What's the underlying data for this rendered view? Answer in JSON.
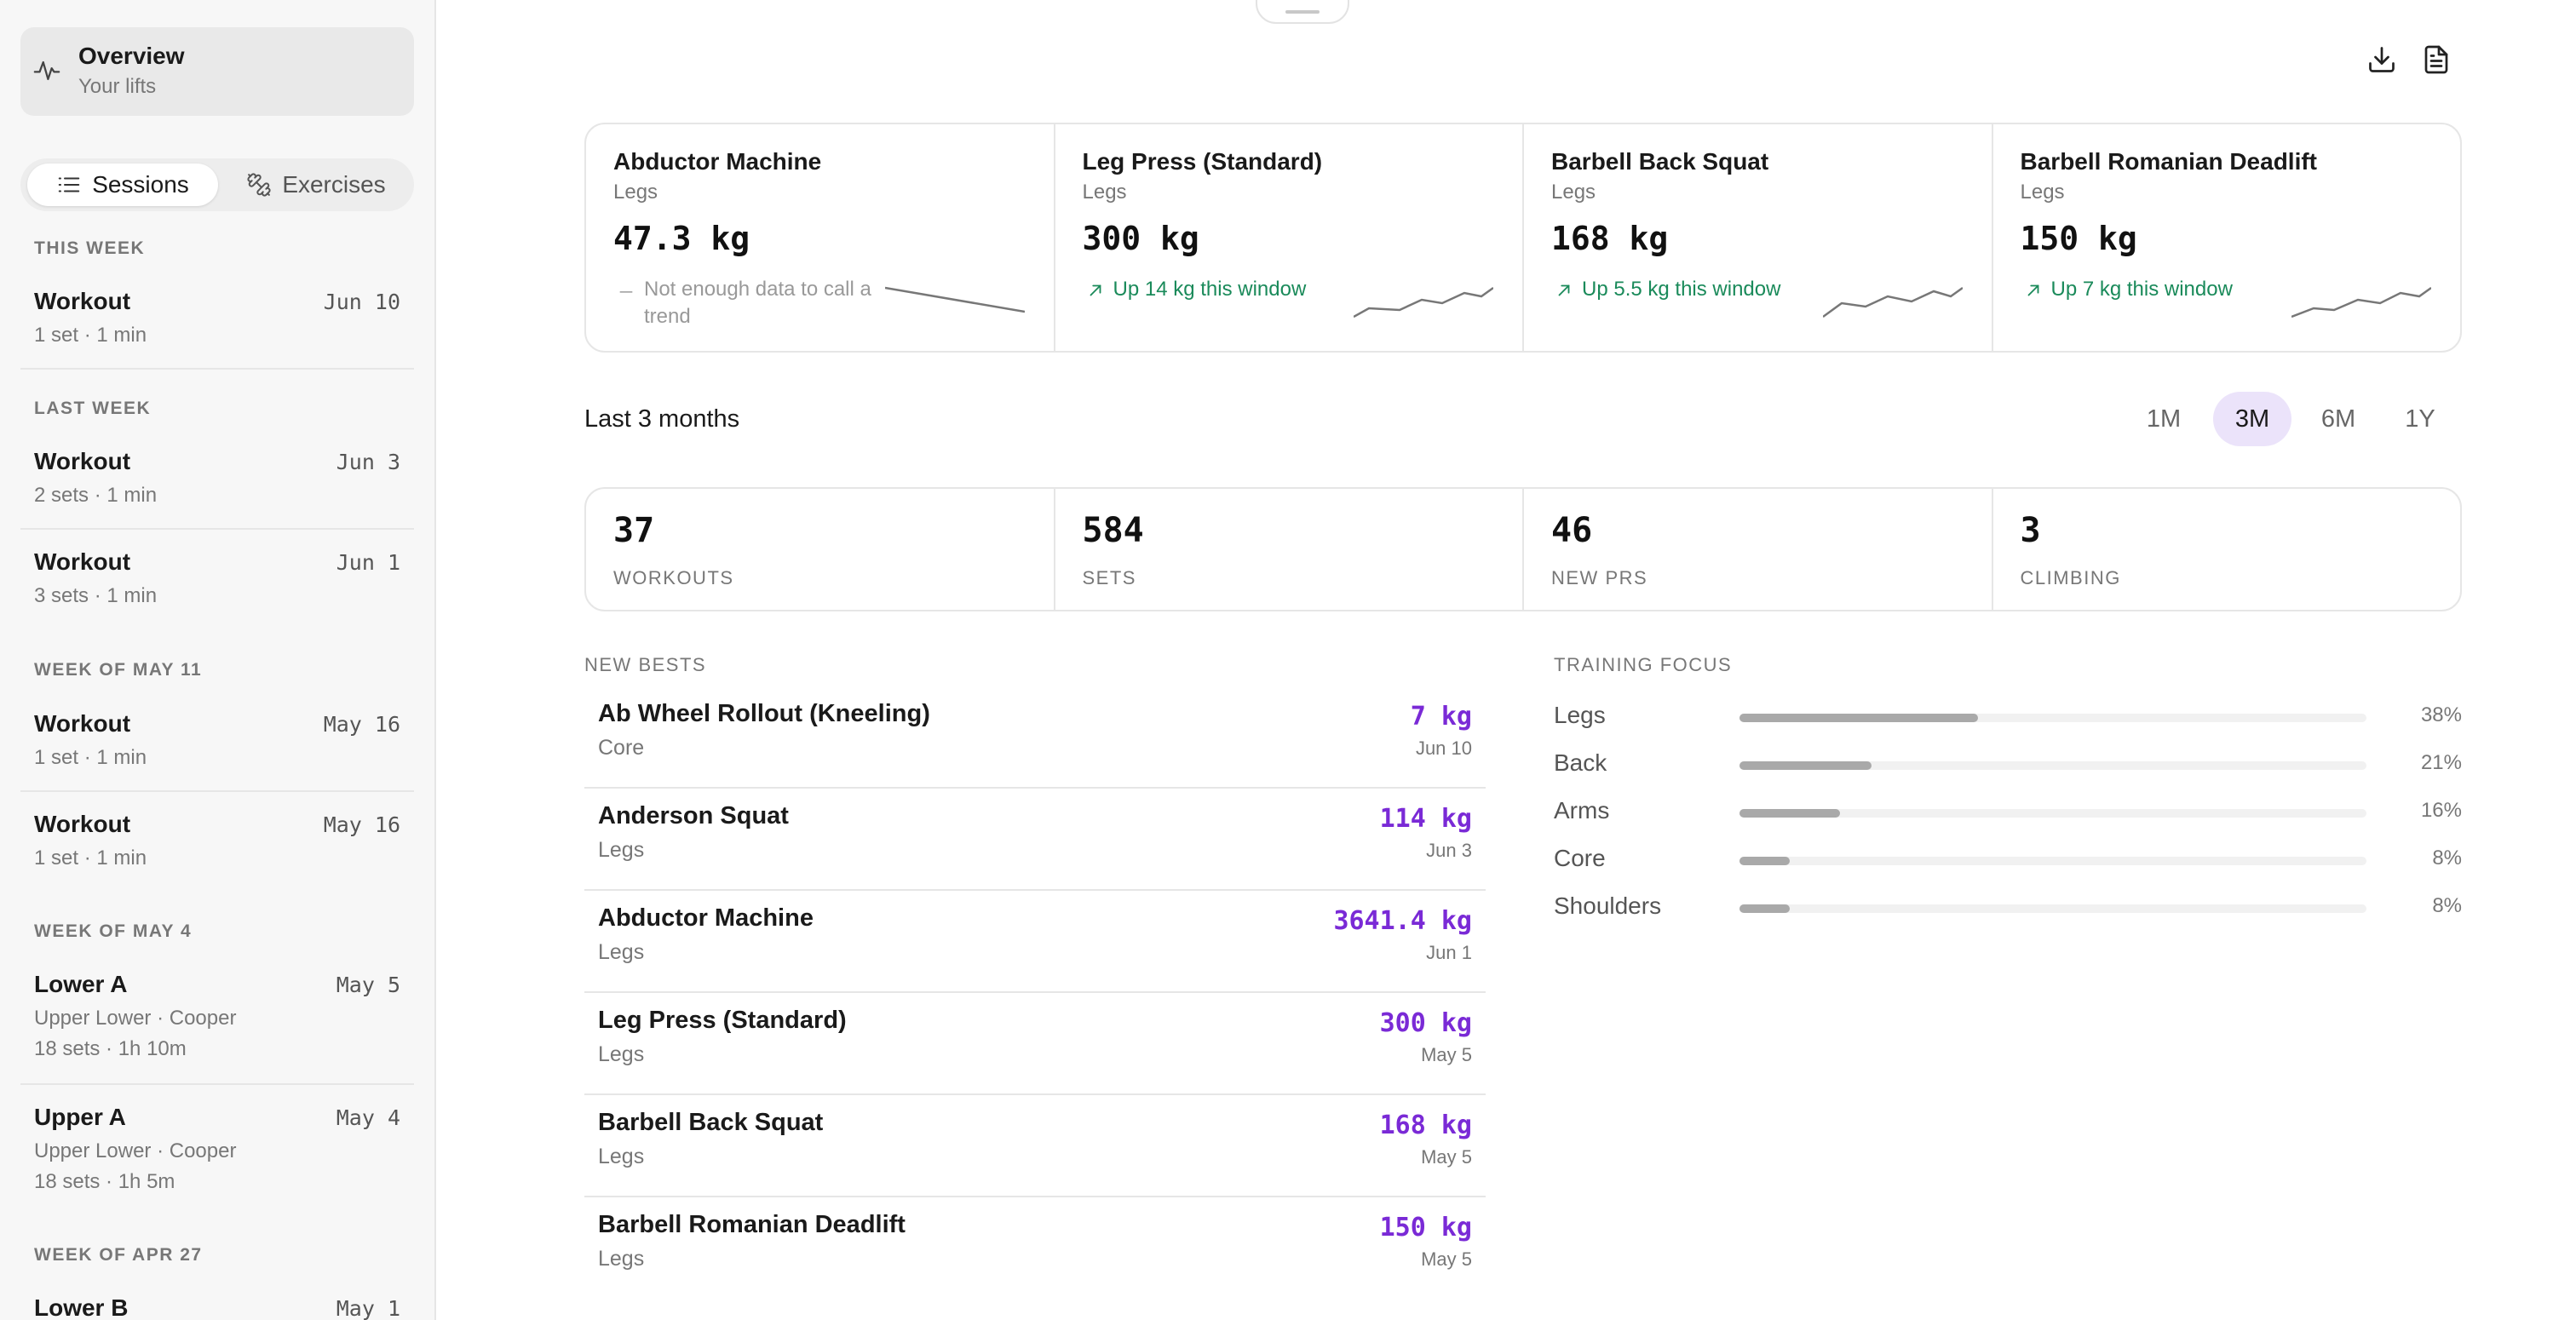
{
  "sidebar": {
    "overview": {
      "title": "Overview",
      "subtitle": "Your lifts"
    },
    "tabs": {
      "sessions": "Sessions",
      "exercises": "Exercises"
    },
    "groups": [
      {
        "label": "THIS WEEK"
      },
      {
        "label": "LAST WEEK"
      },
      {
        "label": "WEEK OF MAY 11"
      },
      {
        "label": "WEEK OF MAY 4"
      },
      {
        "label": "WEEK OF APR 27"
      }
    ],
    "sessions": [
      {
        "title": "Workout",
        "date": "Jun 10",
        "meta": "1 set · 1 min"
      },
      {
        "title": "Workout",
        "date": "Jun 3",
        "meta": "2 sets · 1 min"
      },
      {
        "title": "Workout",
        "date": "Jun 1",
        "meta": "3 sets · 1 min"
      },
      {
        "title": "Workout",
        "date": "May 16",
        "meta": "1 set · 1 min"
      },
      {
        "title": "Workout",
        "date": "May 16",
        "meta": "1 set · 1 min"
      },
      {
        "title": "Lower A",
        "date": "May 5",
        "program": "Upper Lower · Cooper",
        "meta": "18 sets · 1h 10m"
      },
      {
        "title": "Upper A",
        "date": "May 4",
        "program": "Upper Lower · Cooper",
        "meta": "18 sets · 1h 5m"
      },
      {
        "title": "Lower B",
        "date": "May 1"
      }
    ]
  },
  "lifts": [
    {
      "name": "Abductor Machine",
      "category": "Legs",
      "value": "47.3 kg",
      "trend": "Not enough data to call a trend",
      "trend_kind": "neutral"
    },
    {
      "name": "Leg Press (Standard)",
      "category": "Legs",
      "value": "300 kg",
      "trend": "Up 14 kg this window",
      "trend_kind": "up"
    },
    {
      "name": "Barbell Back Squat",
      "category": "Legs",
      "value": "168 kg",
      "trend": "Up 5.5 kg this window",
      "trend_kind": "up"
    },
    {
      "name": "Barbell Romanian Deadlift",
      "category": "Legs",
      "value": "150 kg",
      "trend": "Up 7 kg this window",
      "trend_kind": "up"
    }
  ],
  "range": {
    "label": "Last 3 months",
    "options": [
      "1M",
      "3M",
      "6M",
      "1Y"
    ],
    "selected": "3M"
  },
  "stats": [
    {
      "value": "37",
      "label": "WORKOUTS"
    },
    {
      "value": "584",
      "label": "SETS"
    },
    {
      "value": "46",
      "label": "NEW PRS"
    },
    {
      "value": "3",
      "label": "CLIMBING"
    }
  ],
  "new_bests": {
    "heading": "NEW BESTS",
    "items": [
      {
        "name": "Ab Wheel Rollout (Kneeling)",
        "category": "Core",
        "value": "7 kg",
        "date": "Jun 10"
      },
      {
        "name": "Anderson Squat",
        "category": "Legs",
        "value": "114 kg",
        "date": "Jun 3"
      },
      {
        "name": "Abductor Machine",
        "category": "Legs",
        "value": "3641.4 kg",
        "date": "Jun 1"
      },
      {
        "name": "Leg Press (Standard)",
        "category": "Legs",
        "value": "300 kg",
        "date": "May 5"
      },
      {
        "name": "Barbell Back Squat",
        "category": "Legs",
        "value": "168 kg",
        "date": "May 5"
      },
      {
        "name": "Barbell Romanian Deadlift",
        "category": "Legs",
        "value": "150 kg",
        "date": "May 5"
      }
    ]
  },
  "training_focus": {
    "heading": "TRAINING FOCUS",
    "items": [
      {
        "name": "Legs",
        "pct": "38%",
        "fraction": 0.38
      },
      {
        "name": "Back",
        "pct": "21%",
        "fraction": 0.21
      },
      {
        "name": "Arms",
        "pct": "16%",
        "fraction": 0.16
      },
      {
        "name": "Core",
        "pct": "8%",
        "fraction": 0.08
      },
      {
        "name": "Shoulders",
        "pct": "8%",
        "fraction": 0.08
      }
    ]
  },
  "colors": {
    "accent": "#7a2ad6",
    "accent_bg": "#ebe3fa",
    "trend_up": "#1a8a5a"
  },
  "icons": {
    "overview": "activity-icon",
    "sessions": "list-icon",
    "exercises": "dumbbell-icon",
    "download": "download-icon",
    "report": "document-icon"
  }
}
